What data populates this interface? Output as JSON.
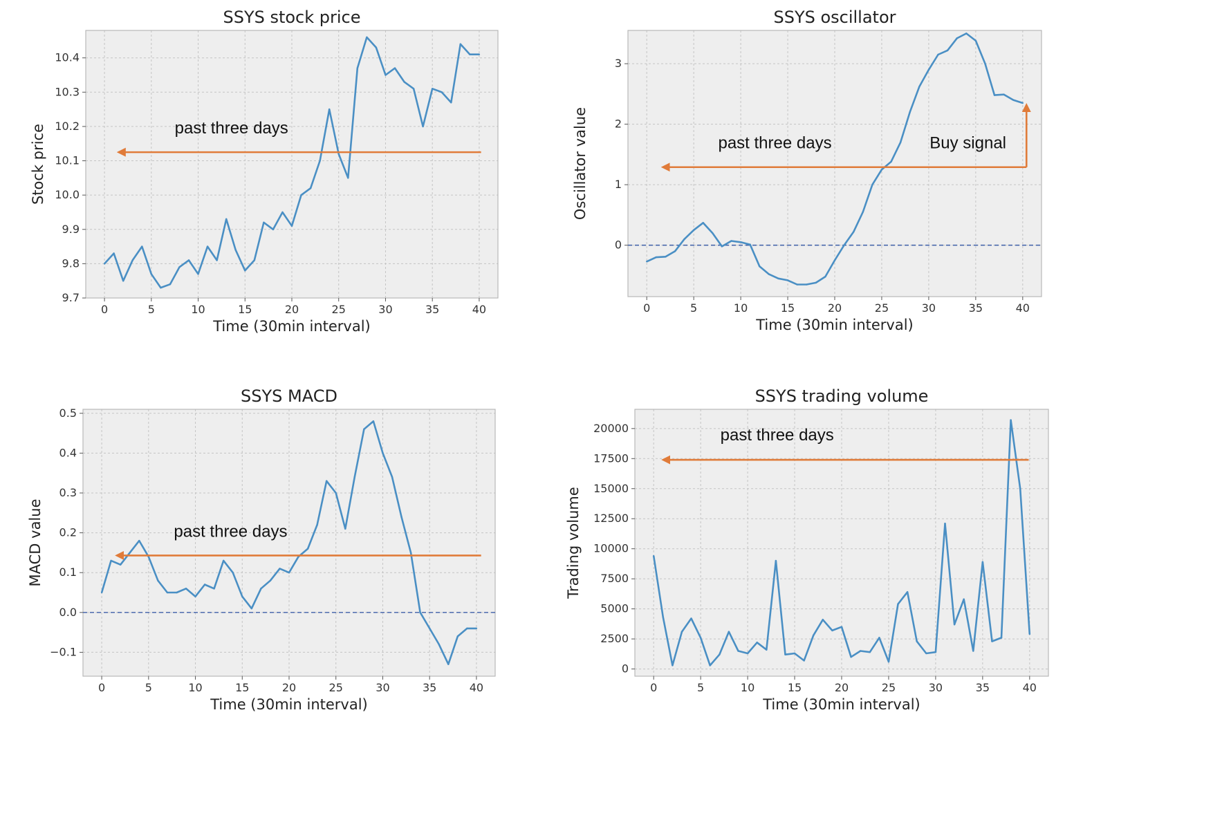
{
  "chart_data": [
    {
      "type": "line",
      "title": "SSYS stock price",
      "xlabel": "Time (30min interval)",
      "ylabel": "Stock price",
      "xlim": [
        -2,
        42
      ],
      "ylim": [
        9.7,
        10.48
      ],
      "xticks": [
        0,
        5,
        10,
        15,
        20,
        25,
        30,
        35,
        40
      ],
      "yticks": [
        9.7,
        9.8,
        9.9,
        10.0,
        10.1,
        10.2,
        10.3,
        10.4
      ],
      "ytick_labels": [
        "9.7",
        "9.8",
        "9.9",
        "10.0",
        "10.1",
        "10.2",
        "10.3",
        "10.4"
      ],
      "grid": true,
      "x": [
        0,
        1,
        2,
        3,
        4,
        5,
        6,
        7,
        8,
        9,
        10,
        11,
        12,
        13,
        14,
        15,
        16,
        17,
        18,
        19,
        20,
        21,
        22,
        23,
        24,
        25,
        26,
        27,
        28,
        29,
        30,
        31,
        32,
        33,
        34,
        35,
        36,
        37,
        38,
        39,
        40
      ],
      "series": [
        {
          "values": [
            9.8,
            9.83,
            9.75,
            9.81,
            9.85,
            9.77,
            9.73,
            9.74,
            9.79,
            9.81,
            9.77,
            9.85,
            9.81,
            9.93,
            9.84,
            9.78,
            9.81,
            9.92,
            9.9,
            9.95,
            9.91,
            10.0,
            10.02,
            10.1,
            10.25,
            10.12,
            10.05,
            10.37,
            10.46,
            10.43,
            10.35,
            10.37,
            10.33,
            10.31,
            10.2,
            10.31,
            10.3,
            10.27,
            10.44,
            10.41,
            10.41
          ]
        }
      ],
      "annotations": [
        {
          "text": "past three days",
          "arrow": {
            "from": [
              40.2,
              10.125
            ],
            "to": [
              1.5,
              10.125
            ]
          },
          "text_at": [
            7.5,
            10.18
          ]
        }
      ]
    },
    {
      "type": "line",
      "title": "SSYS oscillator",
      "xlabel": "Time (30min interval)",
      "ylabel": "Oscillator value",
      "xlim": [
        -2,
        42
      ],
      "ylim": [
        -0.85,
        3.55
      ],
      "xticks": [
        0,
        5,
        10,
        15,
        20,
        25,
        30,
        35,
        40
      ],
      "yticks": [
        0,
        1,
        2,
        3
      ],
      "ytick_labels": [
        "0",
        "1",
        "2",
        "3"
      ],
      "grid": true,
      "reference_line": 0,
      "x": [
        0,
        1,
        2,
        3,
        4,
        5,
        6,
        7,
        8,
        9,
        10,
        11,
        12,
        13,
        14,
        15,
        16,
        17,
        18,
        19,
        20,
        21,
        22,
        23,
        24,
        25,
        26,
        27,
        28,
        29,
        30,
        31,
        32,
        33,
        34,
        35,
        36,
        37,
        38,
        39,
        40
      ],
      "series": [
        {
          "values": [
            -0.27,
            -0.2,
            -0.19,
            -0.1,
            0.1,
            0.25,
            0.37,
            0.2,
            -0.02,
            0.07,
            0.05,
            0.01,
            -0.35,
            -0.48,
            -0.55,
            -0.58,
            -0.65,
            -0.65,
            -0.62,
            -0.52,
            -0.25,
            0.0,
            0.22,
            0.55,
            1.0,
            1.25,
            1.38,
            1.7,
            2.2,
            2.62,
            2.9,
            3.15,
            3.22,
            3.42,
            3.5,
            3.38,
            3.0,
            2.48,
            2.49,
            2.4,
            2.35
          ]
        }
      ],
      "annotations": [
        {
          "text": "past three days",
          "arrow": {
            "from": [
              40.4,
              1.29
            ],
            "to": [
              1.7,
              1.29
            ]
          },
          "text_at": [
            7.6,
            1.6
          ]
        },
        {
          "text": "Buy signal",
          "arrow": {
            "from": [
              40.4,
              1.29
            ],
            "to": [
              40.4,
              2.32
            ]
          },
          "text_at": [
            30.1,
            1.6
          ]
        }
      ]
    },
    {
      "type": "line",
      "title": "SSYS MACD",
      "xlabel": "Time (30min interval)",
      "ylabel": "MACD value",
      "xlim": [
        -2,
        42
      ],
      "ylim": [
        -0.16,
        0.51
      ],
      "xticks": [
        0,
        5,
        10,
        15,
        20,
        25,
        30,
        35,
        40
      ],
      "yticks": [
        -0.1,
        0.0,
        0.1,
        0.2,
        0.3,
        0.4,
        0.5
      ],
      "ytick_labels": [
        "−0.1",
        "0.0",
        "0.1",
        "0.2",
        "0.3",
        "0.4",
        "0.5"
      ],
      "grid": true,
      "reference_line": 0,
      "x": [
        0,
        1,
        2,
        3,
        4,
        5,
        6,
        7,
        8,
        9,
        10,
        11,
        12,
        13,
        14,
        15,
        16,
        17,
        18,
        19,
        20,
        21,
        22,
        23,
        24,
        25,
        26,
        27,
        28,
        29,
        30,
        31,
        32,
        33,
        34,
        35,
        36,
        37,
        38,
        39,
        40
      ],
      "series": [
        {
          "values": [
            0.05,
            0.13,
            0.12,
            0.15,
            0.18,
            0.14,
            0.08,
            0.05,
            0.05,
            0.06,
            0.04,
            0.07,
            0.06,
            0.13,
            0.1,
            0.04,
            0.01,
            0.06,
            0.08,
            0.11,
            0.1,
            0.14,
            0.16,
            0.22,
            0.33,
            0.3,
            0.21,
            0.34,
            0.46,
            0.48,
            0.4,
            0.34,
            0.24,
            0.15,
            0.0,
            -0.04,
            -0.08,
            -0.13,
            -0.06,
            -0.04,
            -0.04
          ]
        }
      ],
      "annotations": [
        {
          "text": "past three days",
          "arrow": {
            "from": [
              40.5,
              0.143
            ],
            "to": [
              1.6,
              0.143
            ]
          },
          "text_at": [
            7.7,
            0.19
          ]
        }
      ]
    },
    {
      "type": "line",
      "title": "SSYS trading volume",
      "xlabel": "Time (30min interval)",
      "ylabel": "Trading volume",
      "xlim": [
        -2,
        42
      ],
      "ylim": [
        -600,
        21600
      ],
      "xticks": [
        0,
        5,
        10,
        15,
        20,
        25,
        30,
        35,
        40
      ],
      "yticks": [
        0,
        2500,
        5000,
        7500,
        10000,
        12500,
        15000,
        17500,
        20000
      ],
      "ytick_labels": [
        "0",
        "2500",
        "5000",
        "7500",
        "10000",
        "12500",
        "15000",
        "17500",
        "20000"
      ],
      "grid": true,
      "x": [
        0,
        1,
        2,
        3,
        4,
        5,
        6,
        7,
        8,
        9,
        10,
        11,
        12,
        13,
        14,
        15,
        16,
        17,
        18,
        19,
        20,
        21,
        22,
        23,
        24,
        25,
        26,
        27,
        28,
        29,
        30,
        31,
        32,
        33,
        34,
        35,
        36,
        37,
        38,
        39,
        40
      ],
      "series": [
        {
          "values": [
            9400,
            4300,
            300,
            3100,
            4200,
            2600,
            300,
            1200,
            3100,
            1500,
            1300,
            2200,
            1600,
            9000,
            1200,
            1300,
            700,
            2800,
            4100,
            3200,
            3500,
            1000,
            1500,
            1400,
            2600,
            600,
            5400,
            6400,
            2300,
            1300,
            1400,
            12100,
            3700,
            5800,
            1500,
            8900,
            2300,
            2600,
            20700,
            15000,
            2900
          ]
        }
      ],
      "annotations": [
        {
          "text": "past three days",
          "arrow": {
            "from": [
              39.9,
              17400
            ],
            "to": [
              1.0,
              17400
            ]
          },
          "text_at": [
            7.1,
            19000
          ]
        }
      ]
    }
  ],
  "colors": {
    "line": "#4a8fc4",
    "arrow": "#e07b39",
    "ref_line": "#3d5ea8",
    "plot_bg": "#eeeeee",
    "grid": "#c4c4c4",
    "axis": "#b8b8b8",
    "text": "#333333"
  }
}
